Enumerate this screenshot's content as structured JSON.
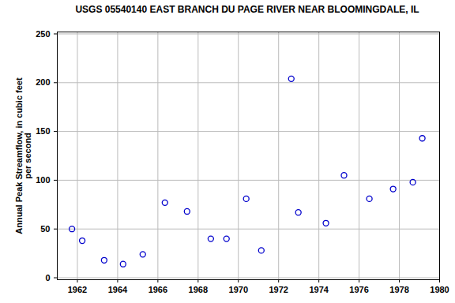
{
  "chart_data": {
    "type": "scatter",
    "title": "USGS 05540140 EAST BRANCH DU PAGE RIVER NEAR BLOOMINGDALE, IL",
    "y_label": "Annual Peak Streamflow, in cubic feet\nper second",
    "x": [
      1961.73,
      1962.24,
      1963.33,
      1964.27,
      1965.25,
      1966.35,
      1967.45,
      1968.63,
      1969.41,
      1970.39,
      1971.14,
      1972.63,
      1972.98,
      1974.35,
      1975.25,
      1976.51,
      1977.69,
      1978.67,
      1979.14
    ],
    "values": [
      50,
      38,
      18,
      14,
      24,
      77,
      68,
      40,
      40,
      81,
      28,
      204,
      67,
      56,
      105,
      81,
      91,
      98,
      143
    ],
    "color": "#0000cc",
    "marker": "open_circle",
    "xlim": [
      1961,
      1980
    ],
    "xticks": [
      1962,
      1964,
      1966,
      1968,
      1970,
      1972,
      1974,
      1976,
      1978,
      1980
    ],
    "ylim": [
      -2,
      252
    ],
    "yticks": [
      0,
      50,
      100,
      150,
      200,
      250
    ],
    "grid": true
  }
}
